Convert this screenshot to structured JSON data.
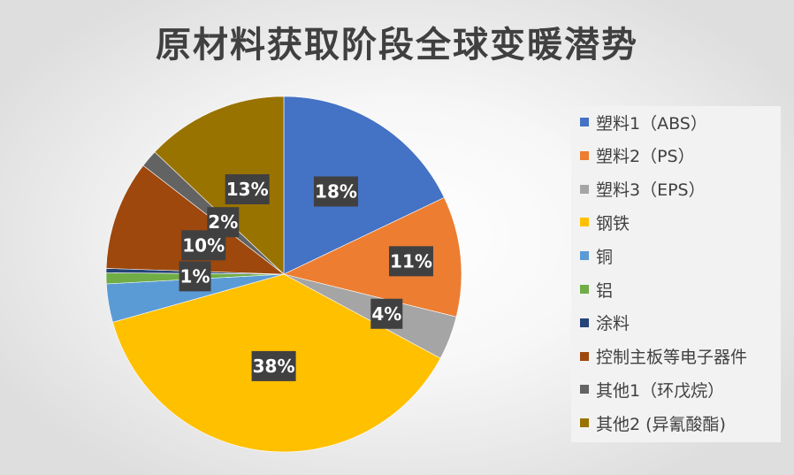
{
  "chart_data": {
    "type": "pie",
    "title": "原材料获取阶段全球变暖潜势",
    "legend_position": "right",
    "slices": [
      {
        "name": "塑料1（ABS）",
        "value": 18,
        "label": "18%",
        "color": "#4472C4"
      },
      {
        "name": "塑料2（PS）",
        "value": 11,
        "label": "11%",
        "color": "#ED7D31"
      },
      {
        "name": "塑料3（EPS）",
        "value": 4,
        "label": "4%",
        "color": "#A5A5A5"
      },
      {
        "name": "钢铁",
        "value": 38,
        "label": "38%",
        "color": "#FFC000"
      },
      {
        "name": "铜",
        "value": 3.5,
        "label": "",
        "color": "#5B9BD5"
      },
      {
        "name": "铝",
        "value": 1,
        "label": "1%",
        "color": "#70AD47"
      },
      {
        "name": "涂料",
        "value": 0.4,
        "label": "",
        "color": "#264478"
      },
      {
        "name": "控制主板等电子器件",
        "value": 10,
        "label": "10%",
        "color": "#9E480E"
      },
      {
        "name": "其他1（环戊烷）",
        "value": 1.6,
        "label": "2%",
        "color": "#636363"
      },
      {
        "name": "其他2 (异氰酸酯)",
        "value": 13,
        "label": "13%",
        "color": "#997300"
      }
    ]
  }
}
